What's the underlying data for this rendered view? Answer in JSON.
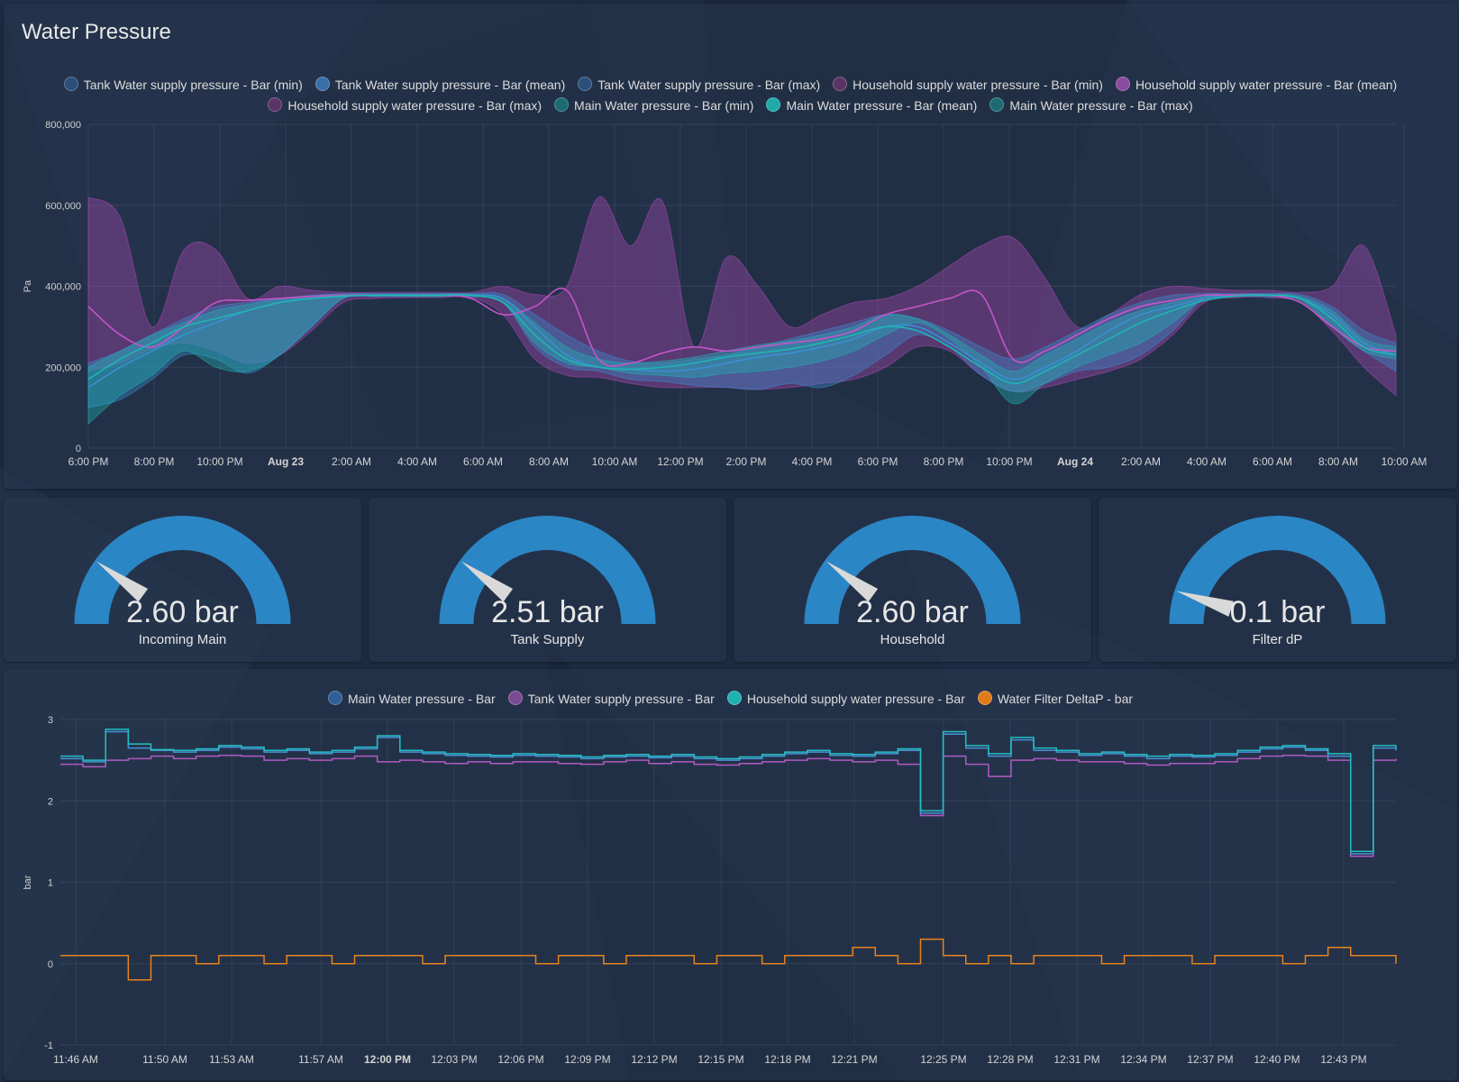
{
  "page": {
    "title": "Water Pressure"
  },
  "colors": {
    "tank": "#3a8fd0",
    "household": "#b04ab8",
    "main": "#1fb5b5",
    "filter": "#e8821c",
    "gauge": "#2b86c5",
    "needle": "#d9d9d9"
  },
  "top_chart": {
    "legend": [
      {
        "label": "Tank Water supply pressure - Bar (min)",
        "color": "#2b4f7a"
      },
      {
        "label": "Tank Water supply pressure - Bar (mean)",
        "color": "#3a6ea8"
      },
      {
        "label": "Tank Water supply pressure - Bar (max)",
        "color": "#2b4f7a"
      },
      {
        "label": "Household supply water pressure - Bar (min)",
        "color": "#5a3466"
      },
      {
        "label": "Household supply water pressure - Bar (mean)",
        "color": "#8a4aa0"
      },
      {
        "label": "Household supply water pressure - Bar (max)",
        "color": "#5a3466"
      },
      {
        "label": "Main Water pressure - Bar (min)",
        "color": "#1d6a72"
      },
      {
        "label": "Main Water pressure - Bar (mean)",
        "color": "#1fa9a9"
      },
      {
        "label": "Main Water pressure - Bar (max)",
        "color": "#1d6a72"
      }
    ],
    "y_axis_label": "Pa",
    "y_ticks": [
      "800,000",
      "600,000",
      "400,000",
      "200,000",
      "0"
    ],
    "x_ticks": [
      {
        "label": "6:00 PM",
        "bold": false
      },
      {
        "label": "8:00 PM",
        "bold": false
      },
      {
        "label": "10:00 PM",
        "bold": false
      },
      {
        "label": "Aug 23",
        "bold": true
      },
      {
        "label": "2:00 AM",
        "bold": false
      },
      {
        "label": "4:00 AM",
        "bold": false
      },
      {
        "label": "6:00 AM",
        "bold": false
      },
      {
        "label": "8:00 AM",
        "bold": false
      },
      {
        "label": "10:00 AM",
        "bold": false
      },
      {
        "label": "12:00 PM",
        "bold": false
      },
      {
        "label": "2:00 PM",
        "bold": false
      },
      {
        "label": "4:00 PM",
        "bold": false
      },
      {
        "label": "6:00 PM",
        "bold": false
      },
      {
        "label": "8:00 PM",
        "bold": false
      },
      {
        "label": "10:00 PM",
        "bold": false
      },
      {
        "label": "Aug 24",
        "bold": true
      },
      {
        "label": "2:00 AM",
        "bold": false
      },
      {
        "label": "4:00 AM",
        "bold": false
      },
      {
        "label": "6:00 AM",
        "bold": false
      },
      {
        "label": "8:00 AM",
        "bold": false
      },
      {
        "label": "10:00 AM",
        "bold": false
      }
    ]
  },
  "gauges": [
    {
      "value": "2.60 bar",
      "label": "Incoming Main",
      "fraction": 0.2
    },
    {
      "value": "2.51 bar",
      "label": "Tank Supply",
      "fraction": 0.2
    },
    {
      "value": "2.60 bar",
      "label": "Household",
      "fraction": 0.2
    },
    {
      "value": "0.1 bar",
      "label": "Filter dP",
      "fraction": 0.1
    }
  ],
  "bottom_chart": {
    "legend": [
      {
        "label": "Main Water pressure - Bar",
        "color": "#2f5f96"
      },
      {
        "label": "Tank Water supply pressure - Bar",
        "color": "#7a4a95"
      },
      {
        "label": "Household supply water pressure - Bar",
        "color": "#1fb0b0"
      },
      {
        "label": "Water Filter DeltaP - bar",
        "color": "#e07b1a"
      }
    ],
    "y_axis_label": "bar",
    "y_ticks": [
      "3",
      "2",
      "1",
      "0",
      "-1"
    ],
    "x_ticks": [
      {
        "label": "11:46 AM",
        "bold": false
      },
      {
        "label": "11:50 AM",
        "bold": false
      },
      {
        "label": "11:53 AM",
        "bold": false
      },
      {
        "label": "11:57 AM",
        "bold": false
      },
      {
        "label": "12:00 PM",
        "bold": true
      },
      {
        "label": "12:03 PM",
        "bold": false
      },
      {
        "label": "12:06 PM",
        "bold": false
      },
      {
        "label": "12:09 PM",
        "bold": false
      },
      {
        "label": "12:12 PM",
        "bold": false
      },
      {
        "label": "12:15 PM",
        "bold": false
      },
      {
        "label": "12:18 PM",
        "bold": false
      },
      {
        "label": "12:21 PM",
        "bold": false
      },
      {
        "label": "12:25 PM",
        "bold": false
      },
      {
        "label": "12:28 PM",
        "bold": false
      },
      {
        "label": "12:31 PM",
        "bold": false
      },
      {
        "label": "12:34 PM",
        "bold": false
      },
      {
        "label": "12:37 PM",
        "bold": false
      },
      {
        "label": "12:40 PM",
        "bold": false
      },
      {
        "label": "12:43 PM",
        "bold": false
      }
    ]
  },
  "chart_data": [
    {
      "type": "area",
      "title": "",
      "xlabel": "",
      "ylabel": "Pa",
      "ylim": [
        0,
        800000
      ],
      "x_hours": [
        0,
        1,
        2,
        3,
        4,
        5,
        6,
        7,
        8,
        9,
        10,
        11,
        12,
        13,
        14,
        15,
        16,
        17,
        18,
        19,
        20,
        21,
        22,
        23,
        24,
        25,
        26,
        27,
        28,
        29,
        30,
        31,
        32,
        33,
        34,
        35,
        36,
        37,
        38,
        39,
        40,
        41
      ],
      "series": [
        {
          "name": "Tank Water supply pressure - Bar (min)",
          "values": [
            100000,
            120000,
            170000,
            230000,
            220000,
            185000,
            230000,
            300000,
            370000,
            375000,
            375000,
            375000,
            375000,
            360000,
            250000,
            200000,
            190000,
            170000,
            165000,
            155000,
            150000,
            145000,
            160000,
            150000,
            180000,
            230000,
            280000,
            250000,
            180000,
            140000,
            160000,
            190000,
            200000,
            230000,
            290000,
            370000,
            375000,
            375000,
            370000,
            300000,
            240000,
            190000
          ]
        },
        {
          "name": "Tank Water supply pressure - Bar (mean)",
          "values": [
            150000,
            200000,
            240000,
            280000,
            310000,
            340000,
            360000,
            370000,
            375000,
            378000,
            378000,
            378000,
            378000,
            370000,
            300000,
            230000,
            200000,
            195000,
            190000,
            195000,
            210000,
            225000,
            235000,
            250000,
            270000,
            300000,
            300000,
            260000,
            210000,
            170000,
            200000,
            240000,
            290000,
            330000,
            350000,
            370000,
            378000,
            378000,
            370000,
            330000,
            260000,
            230000
          ]
        },
        {
          "name": "Tank Water supply pressure - Bar (max)",
          "values": [
            210000,
            240000,
            280000,
            320000,
            350000,
            360000,
            370000,
            378000,
            382000,
            382000,
            382000,
            382000,
            382000,
            380000,
            330000,
            280000,
            240000,
            215000,
            210000,
            220000,
            230000,
            250000,
            270000,
            290000,
            310000,
            330000,
            320000,
            290000,
            250000,
            220000,
            250000,
            290000,
            330000,
            360000,
            378000,
            382000,
            382000,
            382000,
            380000,
            350000,
            290000,
            260000
          ]
        },
        {
          "name": "Household supply water pressure - Bar (min)",
          "values": [
            190000,
            210000,
            245000,
            260000,
            240000,
            210000,
            230000,
            290000,
            360000,
            370000,
            372000,
            372000,
            372000,
            330000,
            220000,
            180000,
            175000,
            160000,
            150000,
            150000,
            150000,
            145000,
            150000,
            160000,
            170000,
            200000,
            250000,
            240000,
            180000,
            140000,
            150000,
            170000,
            190000,
            220000,
            280000,
            360000,
            372000,
            372000,
            360000,
            290000,
            200000,
            130000
          ]
        },
        {
          "name": "Household supply water pressure - Bar (mean)",
          "values": [
            350000,
            280000,
            250000,
            300000,
            360000,
            365000,
            370000,
            375000,
            378000,
            378000,
            378000,
            378000,
            370000,
            330000,
            350000,
            390000,
            220000,
            210000,
            235000,
            250000,
            240000,
            250000,
            260000,
            270000,
            290000,
            330000,
            350000,
            370000,
            380000,
            220000,
            240000,
            280000,
            320000,
            350000,
            365000,
            378000,
            378000,
            378000,
            360000,
            300000,
            250000,
            240000
          ]
        },
        {
          "name": "Household supply water pressure - Bar (max)",
          "values": [
            620000,
            570000,
            300000,
            490000,
            490000,
            370000,
            400000,
            390000,
            385000,
            385000,
            385000,
            385000,
            385000,
            400000,
            380000,
            400000,
            620000,
            500000,
            610000,
            250000,
            470000,
            400000,
            300000,
            330000,
            360000,
            370000,
            400000,
            450000,
            500000,
            520000,
            420000,
            300000,
            330000,
            380000,
            400000,
            395000,
            390000,
            390000,
            385000,
            400000,
            500000,
            280000
          ]
        },
        {
          "name": "Main Water pressure - Bar (min)",
          "values": [
            60000,
            130000,
            180000,
            240000,
            200000,
            190000,
            230000,
            300000,
            370000,
            375000,
            375000,
            375000,
            375000,
            360000,
            260000,
            210000,
            200000,
            185000,
            180000,
            175000,
            185000,
            190000,
            200000,
            215000,
            240000,
            280000,
            310000,
            270000,
            200000,
            110000,
            160000,
            200000,
            230000,
            260000,
            310000,
            370000,
            375000,
            375000,
            365000,
            300000,
            240000,
            220000
          ]
        },
        {
          "name": "Main Water pressure - Bar (mean)",
          "values": [
            170000,
            220000,
            260000,
            300000,
            320000,
            340000,
            360000,
            370000,
            376000,
            378000,
            378000,
            378000,
            378000,
            360000,
            280000,
            220000,
            200000,
            195000,
            200000,
            210000,
            225000,
            235000,
            245000,
            260000,
            280000,
            300000,
            290000,
            250000,
            200000,
            160000,
            190000,
            230000,
            270000,
            310000,
            340000,
            365000,
            376000,
            378000,
            370000,
            320000,
            250000,
            230000
          ]
        },
        {
          "name": "Main Water pressure - Bar (max)",
          "values": [
            200000,
            240000,
            280000,
            310000,
            340000,
            355000,
            368000,
            376000,
            380000,
            380000,
            380000,
            380000,
            380000,
            370000,
            310000,
            250000,
            220000,
            210000,
            215000,
            225000,
            240000,
            255000,
            265000,
            280000,
            300000,
            330000,
            320000,
            280000,
            230000,
            190000,
            230000,
            270000,
            310000,
            340000,
            360000,
            375000,
            380000,
            380000,
            375000,
            340000,
            270000,
            250000
          ]
        }
      ]
    },
    {
      "type": "line",
      "title": "",
      "xlabel": "",
      "ylabel": "bar",
      "ylim": [
        -1,
        3
      ],
      "x_minutes_from_1146": [
        0,
        1,
        2,
        3,
        4,
        5,
        6,
        7,
        8,
        9,
        10,
        11,
        12,
        13,
        14,
        15,
        16,
        17,
        18,
        19,
        20,
        21,
        22,
        23,
        24,
        25,
        26,
        27,
        28,
        29,
        30,
        31,
        32,
        33,
        34,
        35,
        36,
        37,
        38,
        39,
        40,
        41,
        42,
        43,
        44,
        45,
        46,
        47,
        48,
        49,
        50,
        51,
        52,
        53,
        54,
        55,
        56,
        57,
        58,
        59
      ],
      "series": [
        {
          "name": "Main Water pressure - Bar",
          "values": [
            2.52,
            2.48,
            2.85,
            2.65,
            2.62,
            2.6,
            2.62,
            2.66,
            2.64,
            2.6,
            2.62,
            2.58,
            2.6,
            2.64,
            2.78,
            2.6,
            2.58,
            2.56,
            2.55,
            2.54,
            2.56,
            2.55,
            2.54,
            2.52,
            2.54,
            2.55,
            2.53,
            2.55,
            2.52,
            2.5,
            2.52,
            2.55,
            2.58,
            2.6,
            2.56,
            2.55,
            2.58,
            2.62,
            1.85,
            2.82,
            2.65,
            2.55,
            2.75,
            2.62,
            2.6,
            2.56,
            2.58,
            2.55,
            2.52,
            2.55,
            2.54,
            2.56,
            2.6,
            2.64,
            2.66,
            2.62,
            2.55,
            1.35,
            2.65,
            2.62
          ]
        },
        {
          "name": "Tank Water supply pressure - Bar",
          "values": [
            2.45,
            2.42,
            2.5,
            2.52,
            2.55,
            2.52,
            2.55,
            2.56,
            2.55,
            2.5,
            2.52,
            2.5,
            2.52,
            2.55,
            2.48,
            2.5,
            2.48,
            2.46,
            2.48,
            2.46,
            2.48,
            2.48,
            2.46,
            2.45,
            2.48,
            2.5,
            2.46,
            2.48,
            2.45,
            2.44,
            2.46,
            2.48,
            2.5,
            2.52,
            2.5,
            2.48,
            2.5,
            2.45,
            1.82,
            2.55,
            2.45,
            2.3,
            2.5,
            2.52,
            2.5,
            2.48,
            2.48,
            2.46,
            2.44,
            2.46,
            2.46,
            2.48,
            2.52,
            2.55,
            2.56,
            2.55,
            2.5,
            1.32,
            2.5,
            2.52
          ]
        },
        {
          "name": "Household supply water pressure - Bar",
          "values": [
            2.55,
            2.5,
            2.88,
            2.7,
            2.63,
            2.62,
            2.64,
            2.68,
            2.66,
            2.62,
            2.64,
            2.6,
            2.62,
            2.66,
            2.8,
            2.62,
            2.6,
            2.58,
            2.57,
            2.56,
            2.58,
            2.57,
            2.56,
            2.54,
            2.56,
            2.57,
            2.55,
            2.57,
            2.54,
            2.52,
            2.54,
            2.57,
            2.6,
            2.62,
            2.58,
            2.57,
            2.6,
            2.64,
            1.88,
            2.85,
            2.68,
            2.58,
            2.78,
            2.65,
            2.62,
            2.58,
            2.6,
            2.57,
            2.55,
            2.57,
            2.56,
            2.58,
            2.62,
            2.66,
            2.68,
            2.64,
            2.58,
            1.38,
            2.68,
            2.64
          ]
        },
        {
          "name": "Water Filter DeltaP - bar",
          "values": [
            0.1,
            0.1,
            0.1,
            -0.2,
            0.1,
            0.1,
            0.0,
            0.1,
            0.1,
            0.0,
            0.1,
            0.1,
            0.0,
            0.1,
            0.1,
            0.1,
            0.0,
            0.1,
            0.1,
            0.1,
            0.1,
            0.0,
            0.1,
            0.1,
            0.0,
            0.1,
            0.1,
            0.1,
            0.0,
            0.1,
            0.1,
            0.0,
            0.1,
            0.1,
            0.1,
            0.2,
            0.1,
            0.0,
            0.3,
            0.1,
            0.0,
            0.1,
            0.0,
            0.1,
            0.1,
            0.1,
            0.0,
            0.1,
            0.1,
            0.1,
            0.0,
            0.1,
            0.1,
            0.1,
            0.0,
            0.1,
            0.2,
            0.1,
            0.1,
            0.0
          ]
        }
      ]
    }
  ]
}
